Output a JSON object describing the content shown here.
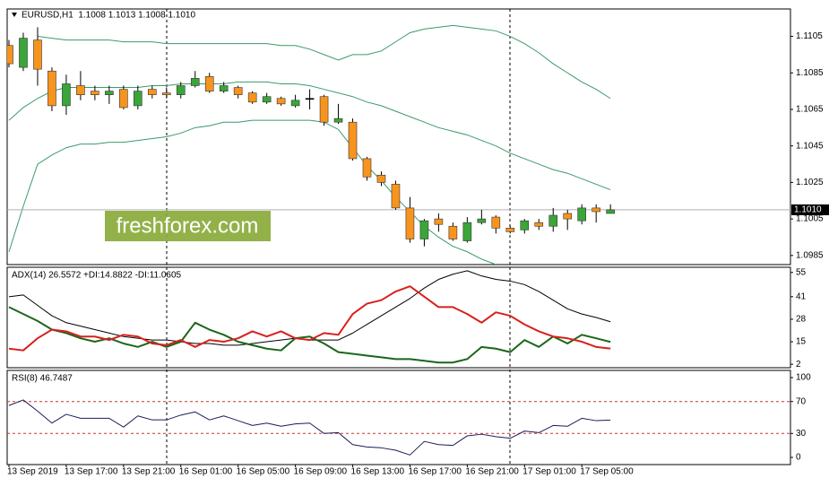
{
  "chart_data": [
    {
      "type": "candlestick",
      "title": "EURUSD,H1  1.1008 1.1013 1.1008 1.1010",
      "watermark": "freshforex.com",
      "ylim": [
        1.098,
        1.112
      ],
      "yticks": [
        1.1105,
        1.1085,
        1.1065,
        1.1045,
        1.1025,
        1.1005,
        1.0985
      ],
      "up_color": "#3aa63a",
      "down_color": "#f7941d",
      "doji_color": "#000000",
      "open": [
        1.11,
        1.1088,
        1.1103,
        1.1086,
        1.1067,
        1.1078,
        1.1075,
        1.1073,
        1.1076,
        1.1067,
        1.1076,
        1.1074,
        1.1073,
        1.1078,
        1.1083,
        1.1075,
        1.1077,
        1.1074,
        1.1069,
        1.1071,
        1.1067,
        1.1071,
        1.1072,
        1.1058,
        1.1058,
        1.1038,
        1.1029,
        1.1024,
        1.1011,
        1.0994,
        1.1005,
        1.1001,
        1.0993,
        1.1003,
        1.1006,
        1.1,
        1.0999,
        1.1003,
        1.1001,
        1.1008,
        1.1004,
        1.1011,
        1.1008
      ],
      "high": [
        1.1103,
        1.1107,
        1.111,
        1.1088,
        1.1084,
        1.1086,
        1.1078,
        1.1078,
        1.1078,
        1.1078,
        1.1078,
        1.1077,
        1.108,
        1.1086,
        1.1085,
        1.108,
        1.1078,
        1.1075,
        1.1074,
        1.1072,
        1.1073,
        1.1076,
        1.1073,
        1.1068,
        1.106,
        1.1039,
        1.1031,
        1.1026,
        1.1017,
        1.1005,
        1.1008,
        1.1003,
        1.1006,
        1.101,
        1.1007,
        1.1001,
        1.1005,
        1.1005,
        1.1011,
        1.101,
        1.1013,
        1.1013,
        1.1013
      ],
      "low": [
        1.1088,
        1.1086,
        1.1078,
        1.1064,
        1.1062,
        1.107,
        1.107,
        1.1068,
        1.1065,
        1.1065,
        1.1071,
        1.1071,
        1.1071,
        1.1077,
        1.1074,
        1.1074,
        1.1071,
        1.1068,
        1.1068,
        1.1067,
        1.1066,
        1.1065,
        1.1056,
        1.1057,
        1.1037,
        1.1026,
        1.1023,
        1.101,
        1.0992,
        1.099,
        1.0998,
        1.0993,
        1.0992,
        1.1002,
        1.0997,
        1.0997,
        1.0997,
        1.0999,
        1.0998,
        1.0999,
        1.1002,
        1.1003,
        1.1008
      ],
      "close": [
        1.109,
        1.1104,
        1.1087,
        1.1067,
        1.1079,
        1.1073,
        1.1073,
        1.1075,
        1.1066,
        1.1075,
        1.1073,
        1.1073,
        1.1078,
        1.1082,
        1.1075,
        1.1078,
        1.1073,
        1.1069,
        1.1072,
        1.1068,
        1.107,
        1.1071,
        1.1058,
        1.106,
        1.1038,
        1.1028,
        1.1025,
        1.1011,
        1.0994,
        1.1004,
        1.1002,
        1.0994,
        1.1003,
        1.1005,
        1.1,
        1.0998,
        1.1004,
        1.1001,
        1.1007,
        1.1005,
        1.1011,
        1.1009,
        1.101
      ],
      "bands": {
        "color": "#3c9a6a",
        "upper": [
          null,
          null,
          1.1105,
          1.1104,
          1.1103,
          1.1103,
          1.1103,
          1.1103,
          1.1102,
          1.1102,
          1.1102,
          1.1101,
          1.1101,
          1.1101,
          1.1101,
          1.1101,
          1.1101,
          1.1101,
          1.1101,
          1.11,
          1.11,
          1.1098,
          1.1095,
          1.1092,
          1.1095,
          1.1095,
          1.1097,
          1.1102,
          1.1107,
          1.1109,
          1.111,
          1.1111,
          1.111,
          1.1109,
          1.1108,
          1.1105,
          1.1101,
          1.1096,
          1.109,
          1.1085,
          1.108,
          1.1076,
          1.1071
        ],
        "middle": [
          1.1059,
          1.1066,
          1.1071,
          1.1075,
          1.1077,
          1.1077,
          1.1077,
          1.1077,
          1.1077,
          1.1077,
          1.1078,
          1.1078,
          1.1079,
          1.1079,
          1.1079,
          1.1079,
          1.108,
          1.108,
          1.108,
          1.1079,
          1.1079,
          1.1078,
          1.1076,
          1.1074,
          1.1072,
          1.1069,
          1.1067,
          1.1064,
          1.1061,
          1.1058,
          1.1055,
          1.1053,
          1.1051,
          1.1048,
          1.1045,
          1.1041,
          1.1038,
          1.1035,
          1.1032,
          1.103,
          1.1027,
          1.1024,
          1.1021
        ],
        "lower": [
          1.0987,
          1.1012,
          1.1035,
          1.104,
          1.1044,
          1.1046,
          1.1046,
          1.1047,
          1.1047,
          1.1048,
          1.1049,
          1.105,
          1.1052,
          1.1055,
          1.1056,
          1.1058,
          1.1058,
          1.1059,
          1.1059,
          1.1059,
          1.1059,
          1.1059,
          1.1058,
          1.1054,
          1.1044,
          1.1034,
          1.1026,
          1.1017,
          1.1009,
          1.1001,
          1.0995,
          1.099,
          1.0987,
          1.0983,
          1.098,
          null,
          null,
          null,
          null,
          null,
          null,
          null,
          null
        ]
      },
      "current_price": {
        "value": 1.101,
        "label": "1.1010"
      }
    },
    {
      "type": "line",
      "title": "ADX(14) 26.5572 +DI:14.8822 -DI:11.0605",
      "ylim": [
        0,
        58
      ],
      "yticks": [
        55,
        41,
        28,
        15,
        2
      ],
      "series": [
        {
          "color": "#000000",
          "width": 1,
          "values": [
            41,
            42,
            36,
            30,
            26,
            24,
            22,
            20,
            18,
            17,
            16,
            16,
            15,
            14,
            14,
            13,
            13,
            14,
            15,
            16,
            17,
            16,
            16,
            16,
            20,
            25,
            30,
            35,
            40,
            46,
            51,
            54,
            56,
            53,
            51,
            50,
            48,
            44,
            39,
            34,
            31,
            29,
            26.56
          ]
        },
        {
          "color": "#1b661b",
          "width": 2,
          "values": [
            35,
            31,
            27,
            22,
            20,
            17,
            15,
            17,
            14,
            12,
            15,
            12,
            15,
            26,
            22,
            19,
            15,
            13,
            11,
            10,
            17,
            18,
            14,
            9,
            8,
            7,
            6,
            5,
            5,
            4,
            3,
            3,
            5,
            12,
            11,
            9,
            16,
            12,
            18,
            14,
            19,
            17,
            14.88
          ]
        },
        {
          "color": "#d8201e",
          "width": 2,
          "values": [
            11,
            10,
            17,
            22,
            21,
            18,
            18,
            16,
            19,
            18,
            14,
            13,
            16,
            12,
            16,
            15,
            17,
            21,
            18,
            21,
            17,
            16,
            20,
            19,
            31,
            37,
            39,
            44,
            47,
            41,
            35,
            35,
            31,
            26,
            32,
            30,
            25,
            21,
            18,
            17,
            15,
            12,
            11.06
          ]
        }
      ]
    },
    {
      "type": "line",
      "title": "RSI(8) 46.7487",
      "ylim": [
        -9,
        109
      ],
      "yticks": [
        100,
        70,
        30,
        0
      ],
      "levels": [
        70,
        30
      ],
      "level_color": "#c0392b",
      "series": [
        {
          "color": "#1c1c5c",
          "width": 1,
          "values": [
            65,
            72,
            58,
            43,
            54,
            49,
            49,
            49,
            38,
            52,
            47,
            47,
            53,
            57,
            47,
            52,
            46,
            40,
            43,
            39,
            42,
            43,
            30,
            31,
            16,
            13,
            12,
            9,
            3,
            20,
            16,
            15,
            27,
            29,
            26,
            24,
            33,
            31,
            40,
            39,
            49,
            46,
            46.75
          ]
        }
      ],
      "categories": [
        "13 Sep 2019",
        null,
        null,
        null,
        "13 Sep 17:00",
        null,
        null,
        null,
        "13 Sep 21:00",
        null,
        null,
        null,
        "16 Sep 01:00",
        null,
        null,
        null,
        "16 Sep 05:00",
        null,
        null,
        null,
        "16 Sep 09:00",
        null,
        null,
        null,
        "16 Sep 13:00",
        null,
        null,
        null,
        "16 Sep 17:00",
        null,
        null,
        null,
        "16 Sep 21:00",
        null,
        null,
        null,
        "17 Sep 01:00",
        null,
        null,
        null,
        "17 Sep 05:00",
        null,
        null
      ]
    }
  ]
}
